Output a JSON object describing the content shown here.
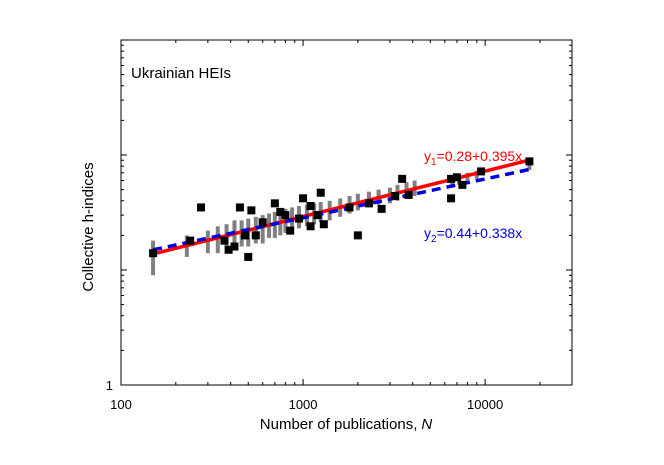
{
  "chart_data": {
    "type": "scatter",
    "title": "",
    "inset_label": "Ukrainian HEIs",
    "xlabel": "Number of publications,",
    "xlabel_var": "N",
    "ylabel": "Collective h-indices",
    "xscale": "log",
    "yscale": "log",
    "xlim": [
      100,
      30000
    ],
    "ylim": [
      1,
      1000
    ],
    "x_ticks": [
      100,
      1000,
      10000
    ],
    "x_tick_labels": [
      "100",
      "1000",
      "10000"
    ],
    "y_ticks": [
      1
    ],
    "y_tick_labels": [
      "1"
    ],
    "grid": false,
    "colors": {
      "points": "#000000",
      "band": "#808080",
      "fit1": "#ff0000",
      "fit2": "#0000dd"
    },
    "fit_lines": [
      {
        "name": "y1",
        "label_main": "y",
        "label_sub": "1",
        "label_rest": "=0.28+0.395x",
        "intercept": 0.28,
        "slope": 0.395,
        "x_range": [
          150,
          17500
        ],
        "color": "#ff0000",
        "style": "solid"
      },
      {
        "name": "y2",
        "label_main": "y",
        "label_sub": "2",
        "label_rest": "=0.44+0.338x",
        "intercept": 0.44,
        "slope": 0.338,
        "x_range": [
          150,
          17500
        ],
        "color": "#0000dd",
        "style": "dashed"
      }
    ],
    "points": [
      {
        "x": 150,
        "y": 14
      },
      {
        "x": 240,
        "y": 18
      },
      {
        "x": 275,
        "y": 35
      },
      {
        "x": 370,
        "y": 18
      },
      {
        "x": 390,
        "y": 15
      },
      {
        "x": 420,
        "y": 16
      },
      {
        "x": 450,
        "y": 35
      },
      {
        "x": 480,
        "y": 20
      },
      {
        "x": 500,
        "y": 13
      },
      {
        "x": 520,
        "y": 33
      },
      {
        "x": 550,
        "y": 20
      },
      {
        "x": 600,
        "y": 26
      },
      {
        "x": 700,
        "y": 38
      },
      {
        "x": 750,
        "y": 32
      },
      {
        "x": 800,
        "y": 30
      },
      {
        "x": 850,
        "y": 22
      },
      {
        "x": 950,
        "y": 28
      },
      {
        "x": 1000,
        "y": 42
      },
      {
        "x": 1100,
        "y": 24
      },
      {
        "x": 1100,
        "y": 36
      },
      {
        "x": 1200,
        "y": 30
      },
      {
        "x": 1250,
        "y": 47
      },
      {
        "x": 1300,
        "y": 25
      },
      {
        "x": 1800,
        "y": 35
      },
      {
        "x": 2000,
        "y": 20
      },
      {
        "x": 2300,
        "y": 38
      },
      {
        "x": 2700,
        "y": 34
      },
      {
        "x": 3200,
        "y": 44
      },
      {
        "x": 3500,
        "y": 62
      },
      {
        "x": 3800,
        "y": 45
      },
      {
        "x": 6500,
        "y": 42
      },
      {
        "x": 6500,
        "y": 62
      },
      {
        "x": 7000,
        "y": 64
      },
      {
        "x": 7500,
        "y": 55
      },
      {
        "x": 9500,
        "y": 72
      },
      {
        "x": 17500,
        "y": 88
      }
    ],
    "bands": [
      {
        "x": 150,
        "ylow": 9,
        "yhigh": 18
      },
      {
        "x": 230,
        "ylow": 13,
        "yhigh": 20
      },
      {
        "x": 300,
        "ylow": 14,
        "yhigh": 22
      },
      {
        "x": 340,
        "ylow": 14,
        "yhigh": 24
      },
      {
        "x": 380,
        "ylow": 15,
        "yhigh": 25
      },
      {
        "x": 420,
        "ylow": 15,
        "yhigh": 27
      },
      {
        "x": 460,
        "ylow": 16,
        "yhigh": 27
      },
      {
        "x": 500,
        "ylow": 16,
        "yhigh": 28
      },
      {
        "x": 550,
        "ylow": 17,
        "yhigh": 29
      },
      {
        "x": 600,
        "ylow": 17,
        "yhigh": 30
      },
      {
        "x": 650,
        "ylow": 19,
        "yhigh": 31
      },
      {
        "x": 700,
        "ylow": 19,
        "yhigh": 32
      },
      {
        "x": 750,
        "ylow": 20,
        "yhigh": 33
      },
      {
        "x": 800,
        "ylow": 21,
        "yhigh": 34
      },
      {
        "x": 870,
        "ylow": 22,
        "yhigh": 35
      },
      {
        "x": 950,
        "ylow": 23,
        "yhigh": 36
      },
      {
        "x": 1050,
        "ylow": 24,
        "yhigh": 37
      },
      {
        "x": 1150,
        "ylow": 25,
        "yhigh": 38
      },
      {
        "x": 1250,
        "ylow": 26,
        "yhigh": 39
      },
      {
        "x": 1400,
        "ylow": 27,
        "yhigh": 40
      },
      {
        "x": 1600,
        "ylow": 29,
        "yhigh": 42
      },
      {
        "x": 1800,
        "ylow": 31,
        "yhigh": 44
      },
      {
        "x": 2000,
        "ylow": 33,
        "yhigh": 46
      },
      {
        "x": 2300,
        "ylow": 35,
        "yhigh": 48
      },
      {
        "x": 2600,
        "ylow": 37,
        "yhigh": 50
      },
      {
        "x": 3000,
        "ylow": 38,
        "yhigh": 52
      },
      {
        "x": 3300,
        "ylow": 40,
        "yhigh": 55
      },
      {
        "x": 3700,
        "ylow": 42,
        "yhigh": 58
      },
      {
        "x": 4100,
        "ylow": 44,
        "yhigh": 60
      },
      {
        "x": 6600,
        "ylow": 52,
        "yhigh": 65
      },
      {
        "x": 7200,
        "ylow": 55,
        "yhigh": 68
      },
      {
        "x": 8000,
        "ylow": 58,
        "yhigh": 70
      },
      {
        "x": 9000,
        "ylow": 62,
        "yhigh": 73
      },
      {
        "x": 17500,
        "ylow": 74,
        "yhigh": 92
      }
    ]
  }
}
